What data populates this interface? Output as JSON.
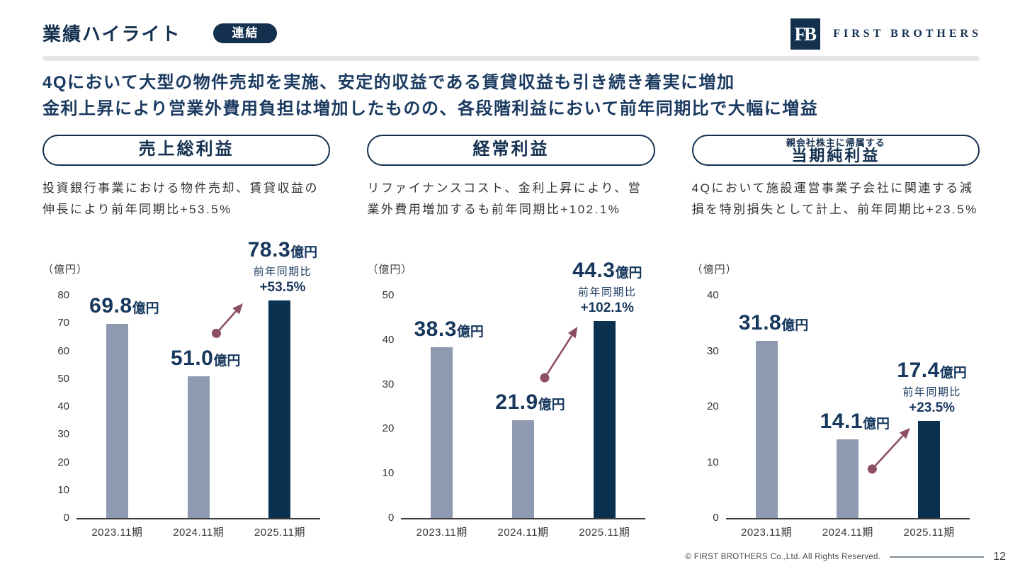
{
  "header": {
    "title": "業績ハイライト",
    "badge": "連結",
    "logo_monogram": "FB",
    "logo_text": "FIRST BROTHERS"
  },
  "headline": {
    "line1": "4Qにおいて大型の物件売却を実施、安定的収益である賃貸収益も引き続き着実に増加",
    "line2": "金利上昇により営業外費用負担は増加したものの、各段階利益において前年同期比で大幅に増益"
  },
  "sections": [
    {
      "title": "売上総利益",
      "description_line1": "投資銀行事業における物件売却、賃貸収益の",
      "description_line2": "伸長により前年同期比+53.5%"
    },
    {
      "title": "経常利益",
      "description_line1": "リファイナンスコスト、金利上昇により、営",
      "description_line2": "業外費用増加するも前年同期比+102.1%"
    },
    {
      "title_small": "親会社株主に帰属する",
      "title": "当期純利益",
      "description_line1": "4Qにおいて施設運営事業子会社に関連する減",
      "description_line2": "損を特別損失として計上、前年同期比+23.5%"
    }
  ],
  "chart_data": [
    {
      "type": "bar",
      "title": "売上総利益",
      "unit_label": "（億円）",
      "categories": [
        "2023.11期",
        "2024.11期",
        "2025.11期"
      ],
      "values": [
        69.8,
        51.0,
        78.3
      ],
      "display_values": [
        "69.8",
        "51.0",
        "78.3"
      ],
      "value_suffix": "億円",
      "yoy_caption": "前年同期比",
      "yoy_pct": "+53.5%",
      "ylim": [
        0,
        80
      ],
      "yticks": [
        0,
        10,
        20,
        30,
        40,
        50,
        60,
        70,
        80
      ],
      "highlight_index": 2
    },
    {
      "type": "bar",
      "title": "経常利益",
      "unit_label": "（億円）",
      "categories": [
        "2023.11期",
        "2024.11期",
        "2025.11期"
      ],
      "values": [
        38.3,
        21.9,
        44.3
      ],
      "display_values": [
        "38.3",
        "21.9",
        "44.3"
      ],
      "value_suffix": "億円",
      "yoy_caption": "前年同期比",
      "yoy_pct": "+102.1%",
      "ylim": [
        0,
        50
      ],
      "yticks": [
        0,
        10,
        20,
        30,
        40,
        50
      ],
      "highlight_index": 2
    },
    {
      "type": "bar",
      "title": "親会社株主に帰属する当期純利益",
      "unit_label": "（億円）",
      "categories": [
        "2023.11期",
        "2024.11期",
        "2025.11期"
      ],
      "values": [
        31.8,
        14.1,
        17.4
      ],
      "display_values": [
        "31.8",
        "14.1",
        "17.4"
      ],
      "value_suffix": "億円",
      "yoy_caption": "前年同期比",
      "yoy_pct": "+23.5%",
      "ylim": [
        0,
        40
      ],
      "yticks": [
        0,
        10,
        20,
        30,
        40
      ],
      "highlight_index": 2
    }
  ],
  "footer": {
    "copyright": "© FIRST BROTHERS Co.,Ltd. All Rights Reserved.",
    "page_number": "12"
  },
  "colors": {
    "accent_navy": "#14304F",
    "value_navy": "#17375D",
    "bar_gray": "#8D9AB0",
    "bar_navy": "#0B3150",
    "arrow": "#8E4E66"
  }
}
